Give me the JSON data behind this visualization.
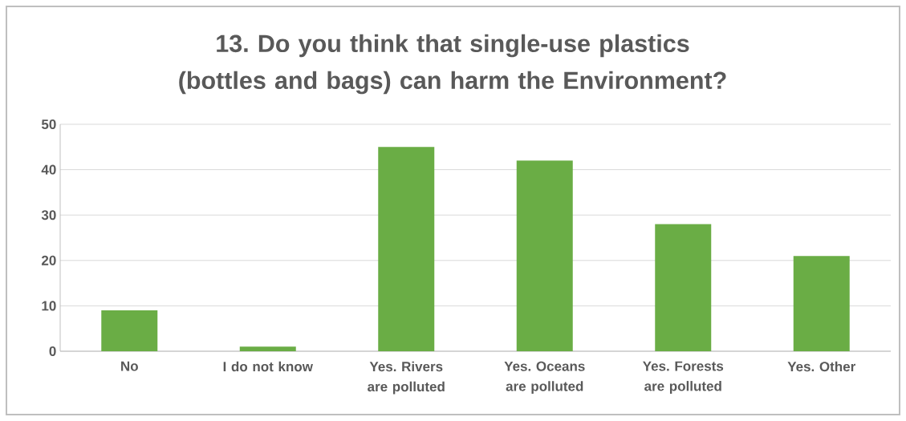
{
  "chart_data": {
    "type": "bar",
    "title": "13. Do you think that single-use plastics (bottles and bags) can harm the Environment?",
    "categories": [
      "No",
      "I do not know",
      "Yes. Rivers are polluted",
      "Yes. Oceans are polluted",
      "Yes. Forests are polluted",
      "Yes. Other"
    ],
    "values": [
      9,
      1,
      45,
      42,
      28,
      21
    ],
    "color": "#6aad45",
    "ylim": [
      0,
      50
    ],
    "yticks": [
      0,
      10,
      20,
      30,
      40,
      50
    ],
    "grid": "y"
  }
}
